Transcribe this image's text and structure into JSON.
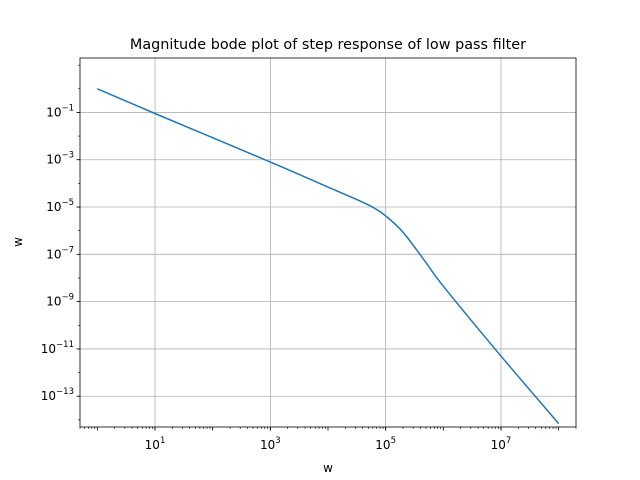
{
  "chart_data": {
    "type": "line",
    "title": "Magnitude bode plot of step response of low pass filter",
    "xlabel": "w",
    "ylabel": "w",
    "xscale": "log",
    "yscale": "log",
    "xlim": [
      0.5,
      200000000
    ],
    "ylim": [
      5e-15,
      20
    ],
    "grid": true,
    "line_color": "#1f77b4",
    "x_ticks": [
      {
        "base": "10",
        "exp": "1",
        "value": 10
      },
      {
        "base": "10",
        "exp": "3",
        "value": 1000
      },
      {
        "base": "10",
        "exp": "5",
        "value": 100000
      },
      {
        "base": "10",
        "exp": "7",
        "value": 10000000
      }
    ],
    "y_ticks": [
      {
        "base": "10",
        "exp": "−1",
        "value": 0.1
      },
      {
        "base": "10",
        "exp": "−3",
        "value": 0.001
      },
      {
        "base": "10",
        "exp": "−5",
        "value": 1e-05
      },
      {
        "base": "10",
        "exp": "−7",
        "value": 1e-07
      },
      {
        "base": "10",
        "exp": "−9",
        "value": 1e-09
      },
      {
        "base": "10",
        "exp": "−11",
        "value": 1e-11
      },
      {
        "base": "10",
        "exp": "−13",
        "value": 1e-13
      }
    ],
    "series": [
      {
        "x": [
          1,
          10,
          100,
          1000,
          10000,
          30000,
          60000,
          100000,
          200000,
          500000,
          1000000,
          10000000,
          100000000
        ],
        "y": [
          1.0,
          0.09,
          0.0085,
          0.0008,
          7e-05,
          2.2e-05,
          9.8e-06,
          4.2e-06,
          8.6e-07,
          4.5e-08,
          4.5e-09,
          5e-12,
          7e-15
        ]
      }
    ]
  }
}
